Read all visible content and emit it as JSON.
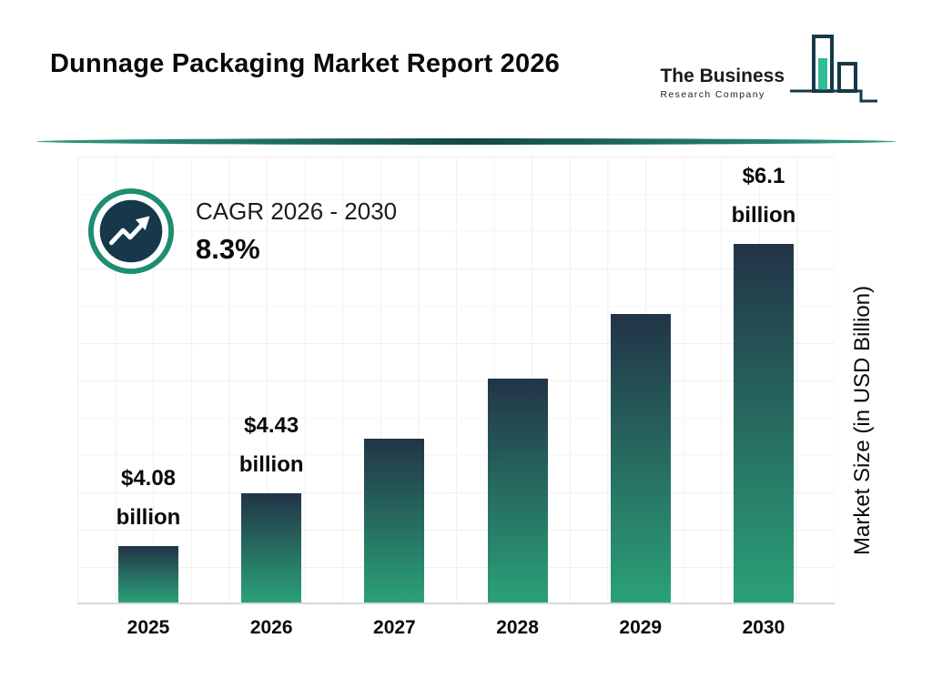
{
  "header": {
    "title": "Dunnage Packaging Market Report 2026",
    "logo": {
      "line1": "The Business",
      "line2": "Research Company"
    }
  },
  "cagr": {
    "label": "CAGR 2026 - 2030",
    "value": "8.3%"
  },
  "chart_data": {
    "type": "bar",
    "title": "Dunnage Packaging Market Report 2026",
    "categories": [
      "2025",
      "2026",
      "2027",
      "2028",
      "2029",
      "2030"
    ],
    "values": [
      4.08,
      4.43,
      4.8,
      5.2,
      5.63,
      6.1
    ],
    "value_labels": [
      "$4.08\nbillion",
      "$4.43\nbillion",
      "",
      "",
      "",
      "$6.1\nbillion"
    ],
    "xlabel": "",
    "ylabel": "Market Size (in USD Billion)",
    "ylim": [
      3.7,
      6.7
    ],
    "grid": true,
    "legend": "none",
    "cagr_label": "CAGR 2026 - 2030",
    "cagr_value": "8.3%",
    "bar_gradient_top": "#223447",
    "bar_gradient_bottom": "#2aa178"
  },
  "colors": {
    "accent_teal": "#1e8e72",
    "dark_navy": "#16384a",
    "divider_teal": "#11493f",
    "grid_gray": "#efefef"
  }
}
